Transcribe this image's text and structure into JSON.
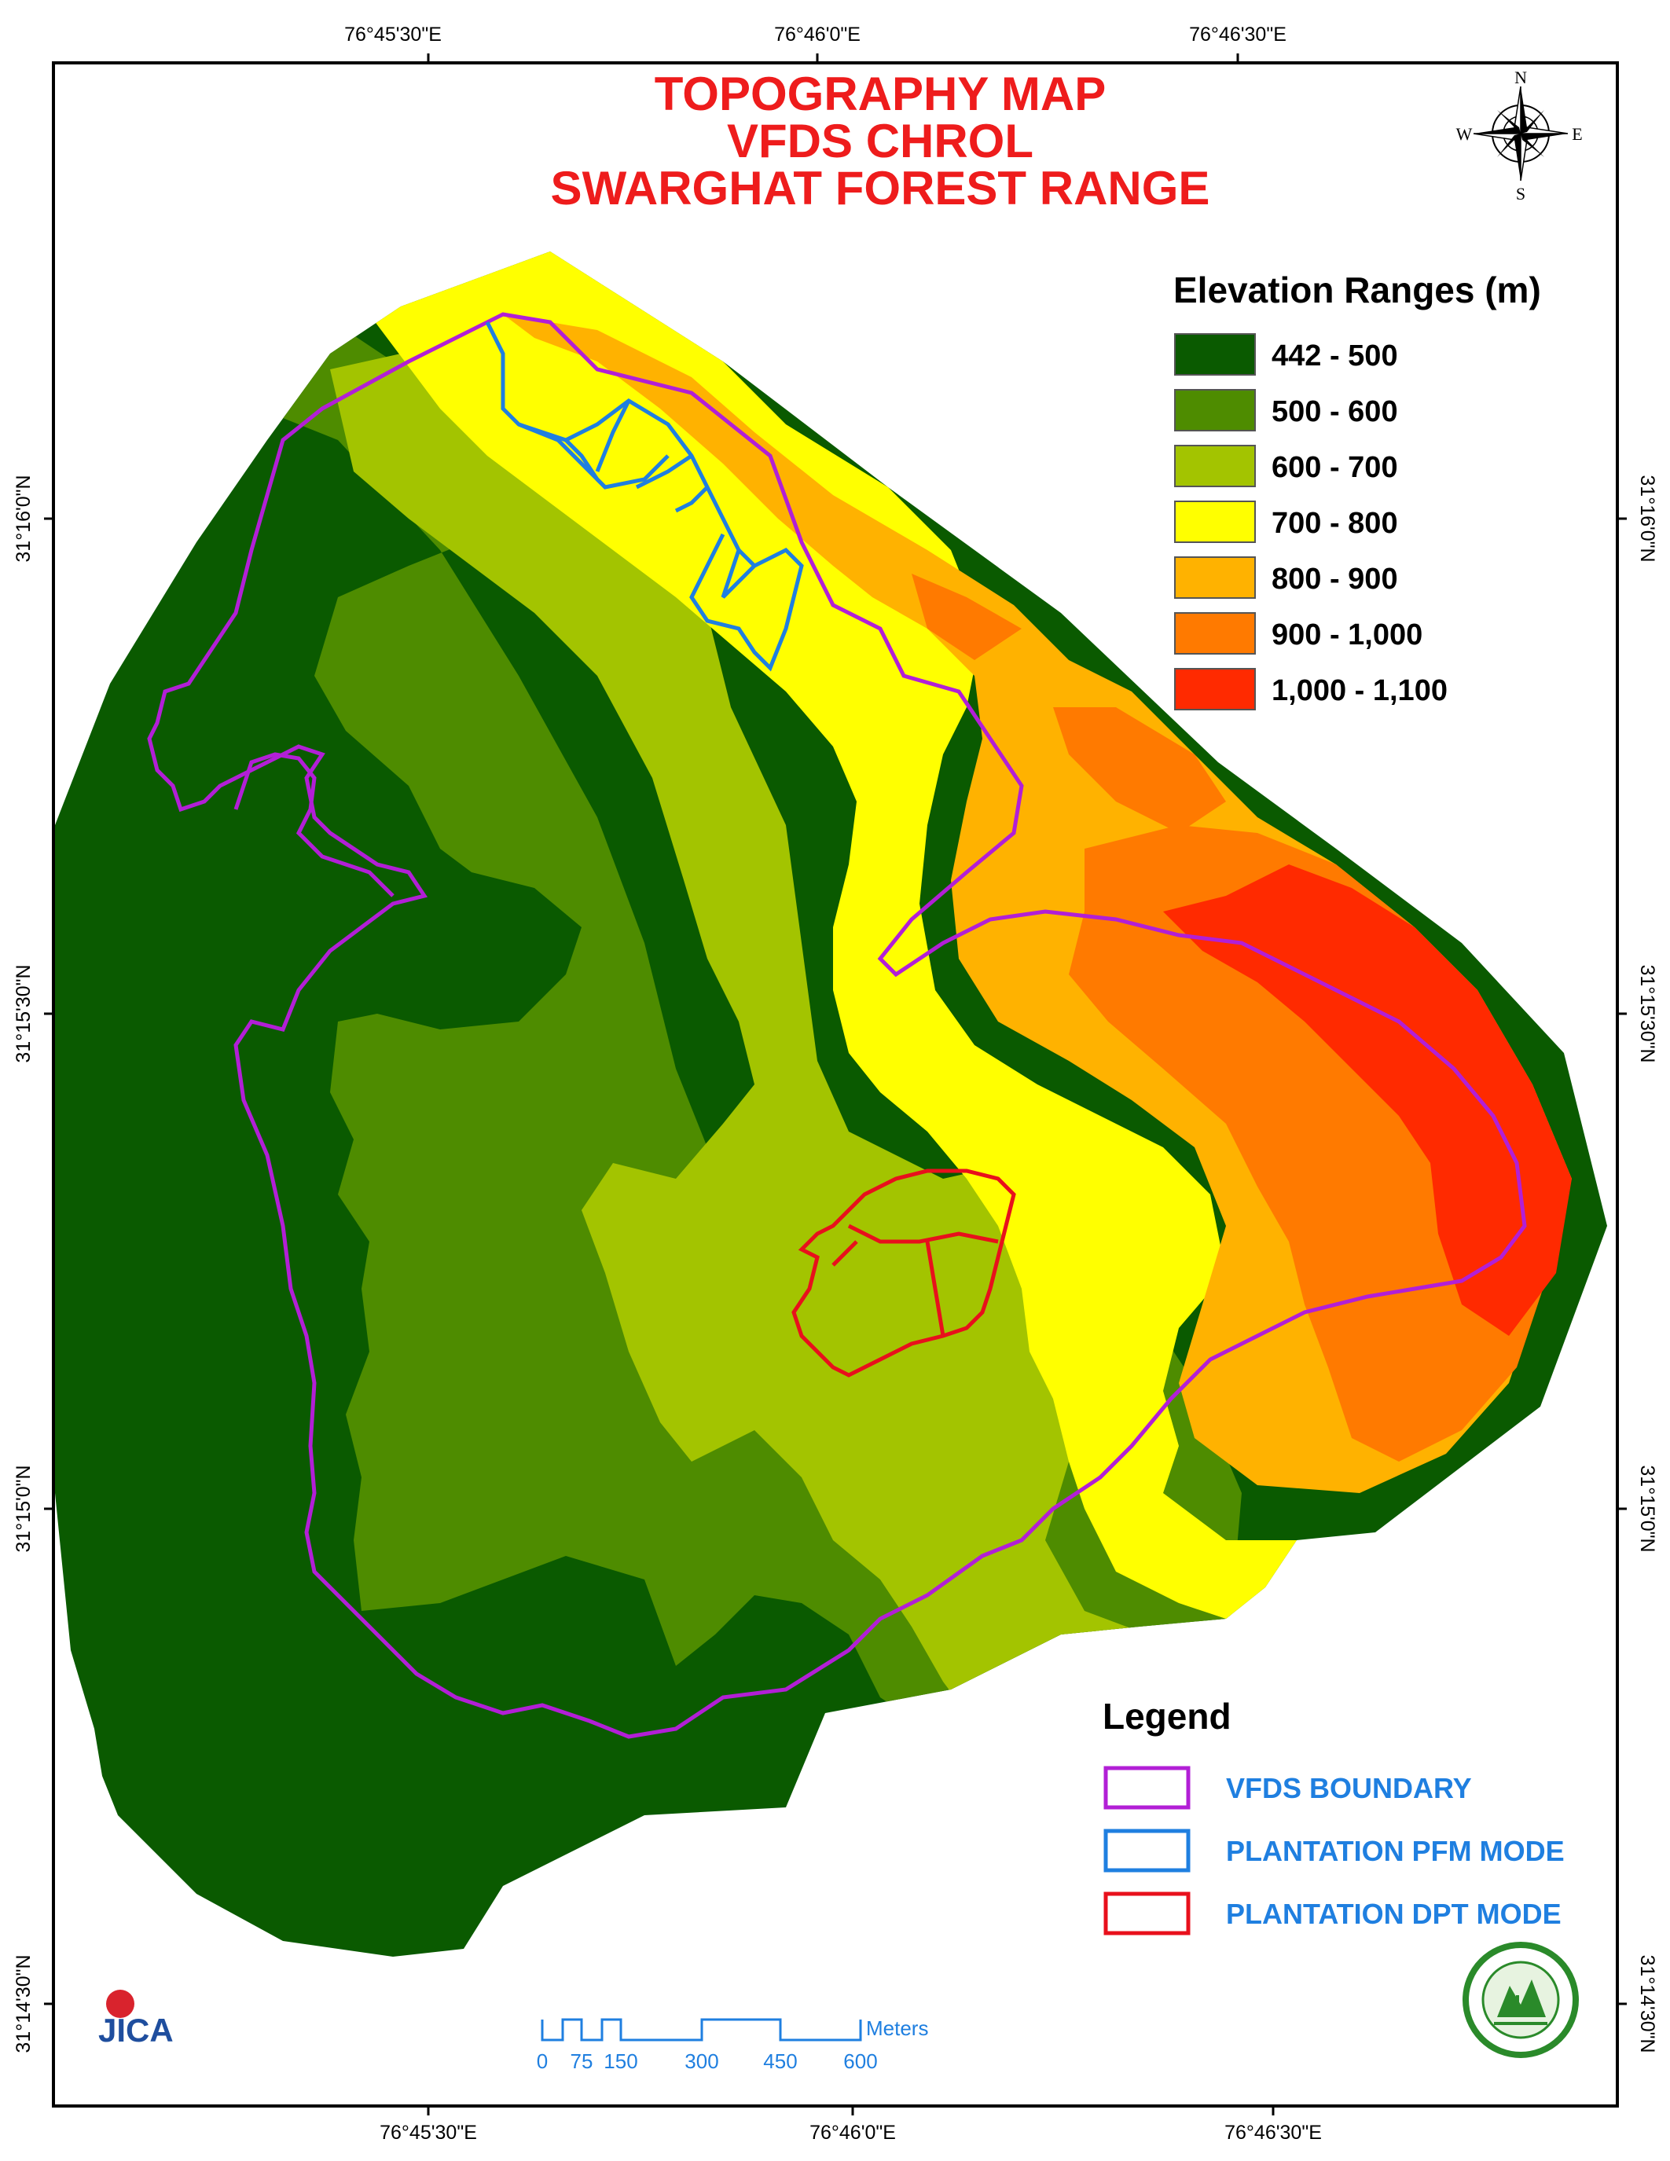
{
  "title": {
    "line1": "TOPOGRAPHY MAP",
    "line2": "VFDS CHROL",
    "line3": "SWARGHAT FOREST RANGE"
  },
  "graticule": {
    "top": [
      "76°45'30\"E",
      "76°46'0\"E",
      "76°46'30\"E"
    ],
    "bottom": [
      "76°45'30\"E",
      "76°46'0\"E",
      "76°46'30\"E"
    ],
    "left": [
      "31°16'0\"N",
      "31°15'30\"N",
      "31°15'0\"N",
      "31°14'30\"N"
    ],
    "right": [
      "31°16'0\"N",
      "31°15'30\"N",
      "31°15'0\"N",
      "31°14'30\"N"
    ]
  },
  "north_arrow": {
    "n": "N",
    "s": "S",
    "e": "E",
    "w": "W"
  },
  "elevation_legend": {
    "heading": "Elevation Ranges (m)",
    "classes": [
      {
        "label": "442 - 500",
        "color": "#0a5a00"
      },
      {
        "label": "500 - 600",
        "color": "#4e8c00"
      },
      {
        "label": "600 - 700",
        "color": "#a3c400"
      },
      {
        "label": "700 - 800",
        "color": "#ffff00"
      },
      {
        "label": "800 - 900",
        "color": "#ffb200"
      },
      {
        "label": "900 - 1,000",
        "color": "#ff7a00"
      },
      {
        "label": "1,000 - 1,100",
        "color": "#ff2a00"
      }
    ]
  },
  "legend": {
    "heading": "Legend",
    "items": [
      {
        "label": "VFDS BOUNDARY",
        "color": "#b21fd6"
      },
      {
        "label": "PLANTATION PFM MODE",
        "color": "#1f7fe0"
      },
      {
        "label": "PLANTATION DPT MODE",
        "color": "#e8101c"
      }
    ]
  },
  "scale_bar": {
    "ticks": [
      "0",
      "75",
      "150",
      "300",
      "450",
      "600"
    ],
    "unit": "Meters"
  },
  "logos": {
    "jica": "JICA"
  }
}
